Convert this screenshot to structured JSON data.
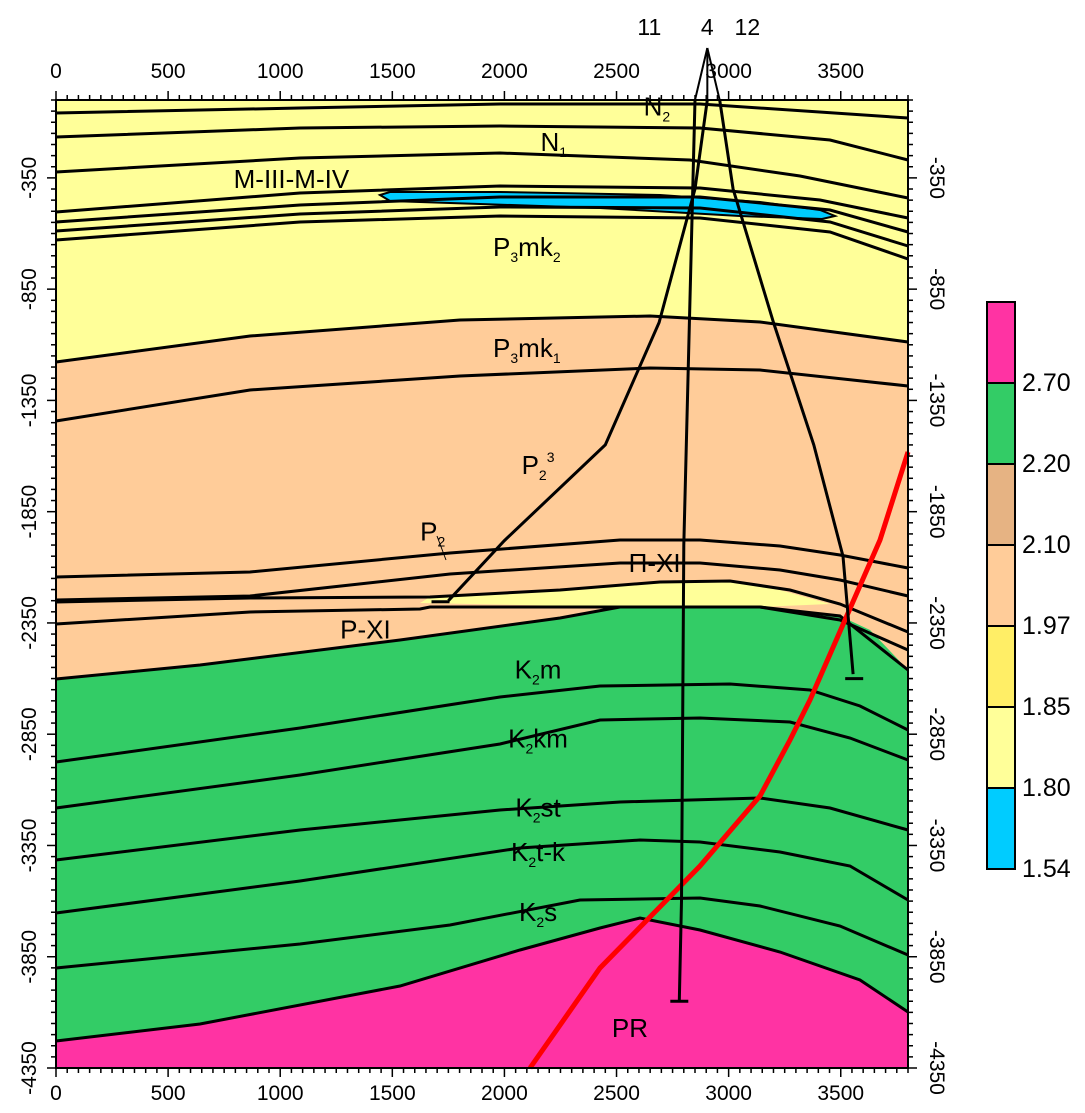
{
  "chart_data": {
    "type": "geological cross-section",
    "x_axis": {
      "range": [
        0,
        3800
      ],
      "ticks": [
        "0",
        "500",
        "1000",
        "1500",
        "2000",
        "2500",
        "3000",
        "3500"
      ],
      "tick_values": [
        0,
        500,
        1000,
        1500,
        2000,
        2500,
        3000,
        3500
      ],
      "minor_step": 50
    },
    "y_axis": {
      "range": [
        -4350,
        0
      ],
      "ticks": [
        "-350",
        "-850",
        "-1350",
        "-1850",
        "-2350",
        "-2850",
        "-3350",
        "-3850",
        "-4350"
      ],
      "tick_values": [
        -350,
        -850,
        -1350,
        -1850,
        -2350,
        -2850,
        -3350,
        -3850,
        -4350
      ],
      "minor_step": 50
    },
    "wells": [
      {
        "name": "11",
        "top": [
          2850,
          0
        ],
        "path": [
          [
            2850,
            0
          ],
          [
            2800,
            -2000
          ],
          [
            2790,
            -3600
          ],
          [
            2780,
            -4050
          ]
        ],
        "td": [
          2780,
          -4050
        ]
      },
      {
        "name": "4",
        "top": [
          2905,
          0
        ],
        "path": [
          [
            2905,
            0
          ],
          [
            2850,
            -400
          ],
          [
            2690,
            -1000
          ],
          [
            2450,
            -1550
          ],
          [
            2000,
            -1980
          ],
          [
            1750,
            -2250
          ]
        ],
        "td": [
          1715,
          -2255
        ]
      },
      {
        "name": "12",
        "top": [
          2960,
          0
        ],
        "path": [
          [
            2960,
            0
          ],
          [
            3020,
            -400
          ],
          [
            3200,
            -1000
          ],
          [
            3380,
            -1550
          ],
          [
            3510,
            -2050
          ],
          [
            3555,
            -2580
          ]
        ],
        "td": [
          3560,
          -2600
        ]
      }
    ],
    "units": [
      {
        "label": "N",
        "sub": "2",
        "x": 2680,
        "y": -70
      },
      {
        "label": "N",
        "sub": "1",
        "x": 2220,
        "y": -230
      },
      {
        "label": "M-III-M-IV",
        "x": 1050,
        "y": -395
      },
      {
        "label": "P",
        "sub": "3",
        "label2": "mk",
        "sub2": "2",
        "x": 2100,
        "y": -700
      },
      {
        "label": "P",
        "sub": "3",
        "label2": "mk",
        "sub2": "1",
        "x": 2100,
        "y": -1155
      },
      {
        "label": "P",
        "sub": "2",
        "sup": "3",
        "x": 2150,
        "y": -1680
      },
      {
        "label": "P",
        "sub": "2",
        "x": 1680,
        "y": -1980
      },
      {
        "label": "П-XI",
        "x": 2670,
        "y": -2120
      },
      {
        "label": "P-XI",
        "x": 1380,
        "y": -2420
      },
      {
        "label": "K",
        "sub": "2",
        "label2": "m",
        "x": 2150,
        "y": -2600
      },
      {
        "label": "K",
        "sub": "2",
        "label2": "km",
        "x": 2150,
        "y": -2910
      },
      {
        "label": "K",
        "sub": "2",
        "label2": "st",
        "x": 2150,
        "y": -3220
      },
      {
        "label": "K",
        "sub": "2",
        "label2": "t-k",
        "x": 2150,
        "y": -3420
      },
      {
        "label": "K",
        "sub": "2",
        "label2": "s",
        "x": 2150,
        "y": -3690
      },
      {
        "label": "PR",
        "x": 2560,
        "y": -4210
      }
    ],
    "legend": {
      "labels": [
        "2.70",
        "2.20",
        "2.10",
        "1.97",
        "1.85",
        "1.80",
        "1.54"
      ],
      "colors": [
        "#ff33a3",
        "#33cc66",
        "#e6b383",
        "#ffcc99",
        "#ffee66",
        "#ffff99",
        "#00ccff"
      ]
    },
    "colors": {
      "upper_beds": "#ffff99",
      "paleogene": "#ffcc99",
      "cretaceous": "#33cc66",
      "basement": "#ff33a3",
      "gas_lens": "#00ccff",
      "fault": "#ff0000"
    }
  }
}
